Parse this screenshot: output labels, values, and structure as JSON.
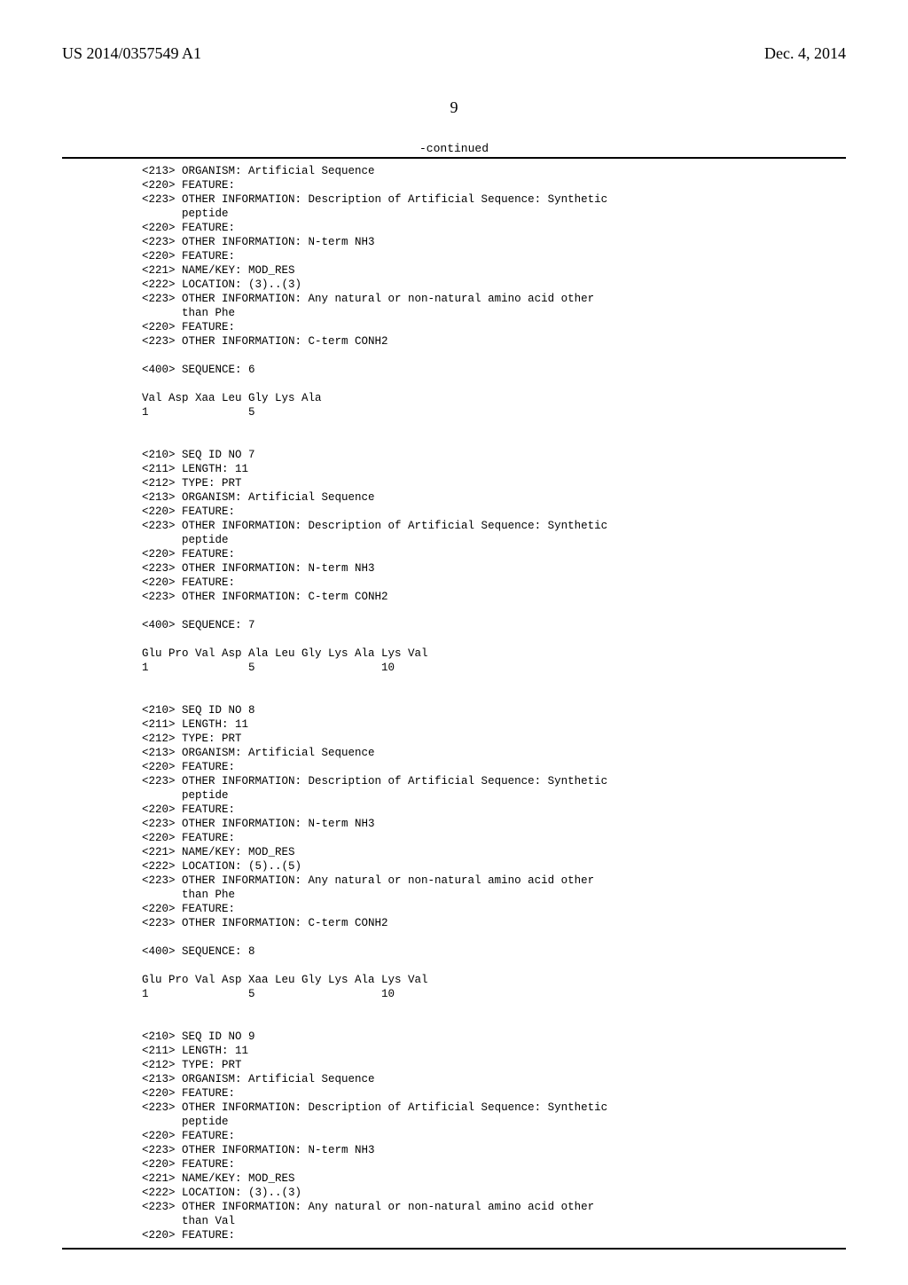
{
  "header": {
    "pub_number": "US 2014/0357549 A1",
    "pub_date": "Dec. 4, 2014",
    "page_num": "9",
    "continued_label": "-continued"
  },
  "listing": {
    "lines": [
      "<213> ORGANISM: Artificial Sequence",
      "<220> FEATURE:",
      "<223> OTHER INFORMATION: Description of Artificial Sequence: Synthetic",
      "      peptide",
      "<220> FEATURE:",
      "<223> OTHER INFORMATION: N-term NH3",
      "<220> FEATURE:",
      "<221> NAME/KEY: MOD_RES",
      "<222> LOCATION: (3)..(3)",
      "<223> OTHER INFORMATION: Any natural or non-natural amino acid other",
      "      than Phe",
      "<220> FEATURE:",
      "<223> OTHER INFORMATION: C-term CONH2",
      "",
      "<400> SEQUENCE: 6",
      "",
      "Val Asp Xaa Leu Gly Lys Ala",
      "1               5",
      "",
      "",
      "<210> SEQ ID NO 7",
      "<211> LENGTH: 11",
      "<212> TYPE: PRT",
      "<213> ORGANISM: Artificial Sequence",
      "<220> FEATURE:",
      "<223> OTHER INFORMATION: Description of Artificial Sequence: Synthetic",
      "      peptide",
      "<220> FEATURE:",
      "<223> OTHER INFORMATION: N-term NH3",
      "<220> FEATURE:",
      "<223> OTHER INFORMATION: C-term CONH2",
      "",
      "<400> SEQUENCE: 7",
      "",
      "Glu Pro Val Asp Ala Leu Gly Lys Ala Lys Val",
      "1               5                   10",
      "",
      "",
      "<210> SEQ ID NO 8",
      "<211> LENGTH: 11",
      "<212> TYPE: PRT",
      "<213> ORGANISM: Artificial Sequence",
      "<220> FEATURE:",
      "<223> OTHER INFORMATION: Description of Artificial Sequence: Synthetic",
      "      peptide",
      "<220> FEATURE:",
      "<223> OTHER INFORMATION: N-term NH3",
      "<220> FEATURE:",
      "<221> NAME/KEY: MOD_RES",
      "<222> LOCATION: (5)..(5)",
      "<223> OTHER INFORMATION: Any natural or non-natural amino acid other",
      "      than Phe",
      "<220> FEATURE:",
      "<223> OTHER INFORMATION: C-term CONH2",
      "",
      "<400> SEQUENCE: 8",
      "",
      "Glu Pro Val Asp Xaa Leu Gly Lys Ala Lys Val",
      "1               5                   10",
      "",
      "",
      "<210> SEQ ID NO 9",
      "<211> LENGTH: 11",
      "<212> TYPE: PRT",
      "<213> ORGANISM: Artificial Sequence",
      "<220> FEATURE:",
      "<223> OTHER INFORMATION: Description of Artificial Sequence: Synthetic",
      "      peptide",
      "<220> FEATURE:",
      "<223> OTHER INFORMATION: N-term NH3",
      "<220> FEATURE:",
      "<221> NAME/KEY: MOD_RES",
      "<222> LOCATION: (3)..(3)",
      "<223> OTHER INFORMATION: Any natural or non-natural amino acid other",
      "      than Val",
      "<220> FEATURE:"
    ]
  }
}
